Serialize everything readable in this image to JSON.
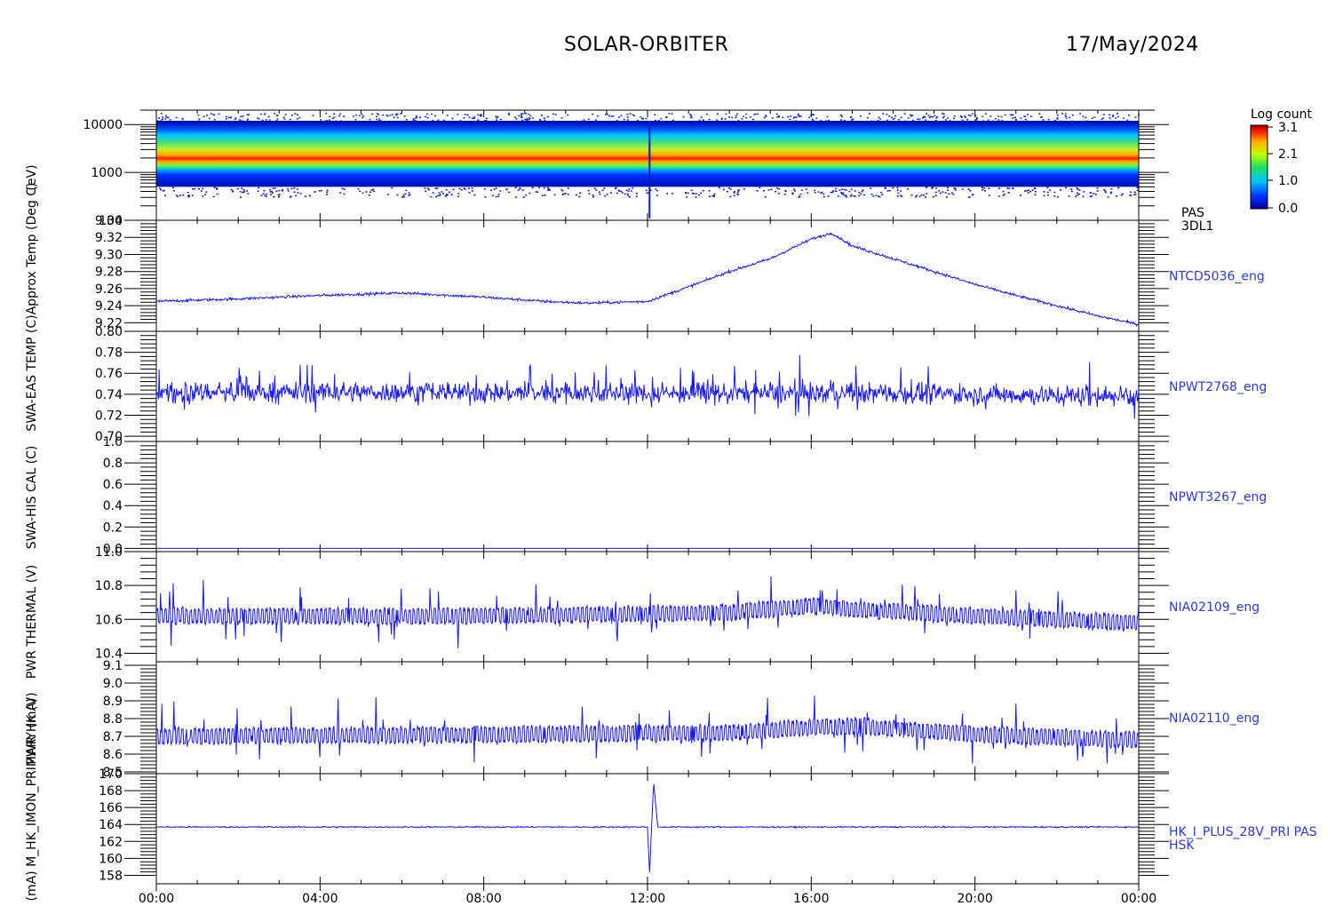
{
  "header": {
    "mission": "SOLAR-ORBITER",
    "date": "17/May/2024"
  },
  "colors": {
    "trace": "#1a1aee",
    "label": "#2b3bd6"
  },
  "chart_data": [
    {
      "type": "heatmap",
      "label_lines": [
        "PAS",
        "3DL1"
      ],
      "ylabel": "(eV)",
      "y_scale": "log",
      "ylim": [
        100,
        20000
      ],
      "yticks": [
        100,
        1000,
        10000
      ],
      "ytick_labels": [
        "100",
        "1000",
        "10000"
      ],
      "colorbar": {
        "title": "Log count",
        "range": [
          0.0,
          3.1
        ],
        "tick_labels": [
          "3.1",
          "2.1",
          "1.0",
          "0.0"
        ]
      },
      "description_values": {
        "peak_energy_eV": 1600,
        "band_low_eV": 500,
        "band_high_eV": 12000
      }
    },
    {
      "type": "line",
      "name": "NTCD5036_eng",
      "ylabel": "Approx Temp (Deg C)",
      "ylim": [
        9.21,
        9.34
      ],
      "yticks": [
        9.22,
        9.24,
        9.26,
        9.28,
        9.3,
        9.32,
        9.34
      ],
      "ytick_labels": [
        "9.22",
        "9.24",
        "9.26",
        "9.28",
        "9.30",
        "9.32",
        "9.34"
      ],
      "x_hours": [
        0,
        2,
        4,
        6,
        8,
        9.5,
        10.5,
        12,
        13,
        14,
        15,
        16,
        16.5,
        17,
        18,
        19,
        20,
        21,
        22,
        23,
        24
      ],
      "values": [
        9.245,
        9.248,
        9.252,
        9.255,
        9.25,
        9.245,
        9.243,
        9.245,
        9.262,
        9.28,
        9.295,
        9.318,
        9.325,
        9.31,
        9.295,
        9.28,
        9.265,
        9.252,
        9.24,
        9.228,
        9.218
      ]
    },
    {
      "type": "line",
      "name": "NPWT2768_eng",
      "ylabel": "SWA-EAS TEMP (C)",
      "ylim": [
        0.695,
        0.8
      ],
      "yticks": [
        0.7,
        0.72,
        0.74,
        0.76,
        0.78,
        0.8
      ],
      "ytick_labels": [
        "0.70",
        "0.72",
        "0.74",
        "0.76",
        "0.78",
        "0.80"
      ],
      "x_hours": [
        0,
        6,
        12,
        18,
        24
      ],
      "values": [
        0.742,
        0.742,
        0.741,
        0.741,
        0.738
      ],
      "noise_range": [
        0.72,
        0.785
      ]
    },
    {
      "type": "line",
      "name": "NPWT3267_eng",
      "ylabel": "SWA-HIS CAL (C)",
      "ylim": [
        -0.03,
        1.0
      ],
      "yticks": [
        0.0,
        0.2,
        0.4,
        0.6,
        0.8,
        1.0
      ],
      "ytick_labels": [
        "0.0",
        "0.2",
        "0.4",
        "0.6",
        "0.8",
        "1.0"
      ],
      "x_hours": [
        0,
        24
      ],
      "values": [
        0.0,
        0.0
      ]
    },
    {
      "type": "line",
      "name": "NIA02109_eng",
      "ylabel": "PWR THERMAL (V)",
      "ylim": [
        10.35,
        11.0
      ],
      "yticks": [
        10.4,
        10.6,
        10.8,
        11.0
      ],
      "ytick_labels": [
        "10.4",
        "10.6",
        "10.8",
        "11.0"
      ],
      "x_hours": [
        0,
        8,
        14,
        16,
        17,
        20,
        24
      ],
      "values": [
        10.62,
        10.62,
        10.64,
        10.68,
        10.66,
        10.62,
        10.58
      ]
    },
    {
      "type": "line",
      "name": "NIA02110_eng",
      "ylabel": "PWR HK (V)",
      "ylim": [
        8.49,
        9.12
      ],
      "yticks": [
        8.5,
        8.6,
        8.7,
        8.8,
        8.9,
        9.0,
        9.1
      ],
      "ytick_labels": [
        "8.5",
        "8.6",
        "8.7",
        "8.8",
        "8.9",
        "9.0",
        "9.1"
      ],
      "x_hours": [
        0,
        8,
        14,
        16,
        17,
        20,
        24
      ],
      "values": [
        8.7,
        8.71,
        8.72,
        8.75,
        8.76,
        8.71,
        8.68
      ]
    },
    {
      "type": "line",
      "name": "HK_I_PLUS_28V_PRI PAS",
      "label_lines": [
        "HK_I_PLUS_28V_PRI PAS",
        "HSK"
      ],
      "ylabel": "(mA) M_HK_IMON_PRIMARY (mA)",
      "ylim": [
        157,
        170
      ],
      "yticks": [
        158,
        160,
        162,
        164,
        166,
        168,
        170
      ],
      "ytick_labels": [
        "158",
        "160",
        "162",
        "164",
        "166",
        "168",
        "170"
      ],
      "x_hours": [
        0,
        12,
        12.05,
        12.15,
        12.25,
        24
      ],
      "values": [
        163.7,
        163.7,
        158.2,
        169.0,
        163.7,
        163.7
      ]
    }
  ],
  "x_axis": {
    "tick_labels": [
      "00:00",
      "04:00",
      "08:00",
      "12:00",
      "16:00",
      "20:00",
      "00:00"
    ],
    "range_hours": [
      0,
      24
    ]
  }
}
